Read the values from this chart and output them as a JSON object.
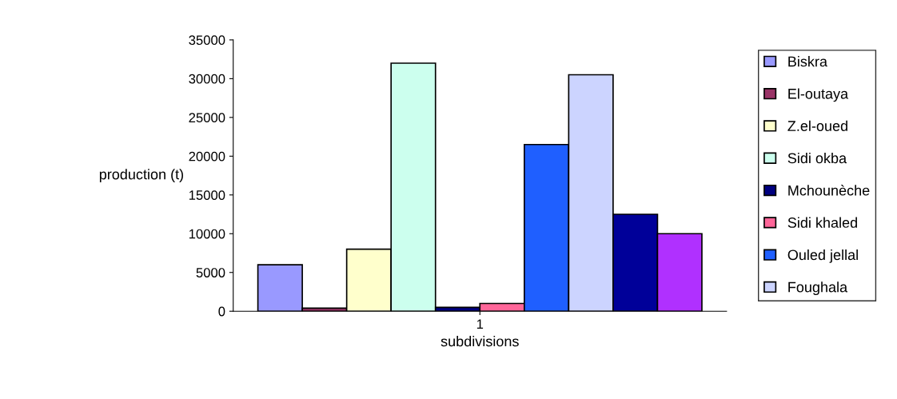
{
  "chart_data": {
    "type": "bar",
    "categories": [
      "1"
    ],
    "xlabel": "subdivisions",
    "ylabel": "production (t)",
    "ylim": [
      0,
      35000
    ],
    "yticks": [
      0,
      5000,
      10000,
      15000,
      20000,
      25000,
      30000,
      35000
    ],
    "grid": false,
    "legend": "right",
    "series": [
      {
        "name": "Biskra",
        "color": "#9999ff",
        "values": [
          6000
        ]
      },
      {
        "name": "El-outaya",
        "color": "#993366",
        "values": [
          400
        ]
      },
      {
        "name": "Z.el-oued",
        "color": "#ffffcc",
        "values": [
          8000
        ]
      },
      {
        "name": "Sidi okba",
        "color": "#ccffee",
        "values": [
          32000
        ]
      },
      {
        "name": "Mchounèche",
        "color": "#000080",
        "values": [
          500
        ]
      },
      {
        "name": "Sidi khaled",
        "color": "#ff6699",
        "values": [
          1000
        ]
      },
      {
        "name": "Ouled jellal",
        "color": "#1f5fff",
        "values": [
          21500
        ]
      },
      {
        "name": "Foughala",
        "color": "#ccd4ff",
        "values": [
          30500
        ]
      },
      {
        "color": "#000099",
        "values": [
          12500
        ]
      },
      {
        "color": "#b030ff",
        "values": [
          10000
        ]
      }
    ]
  }
}
